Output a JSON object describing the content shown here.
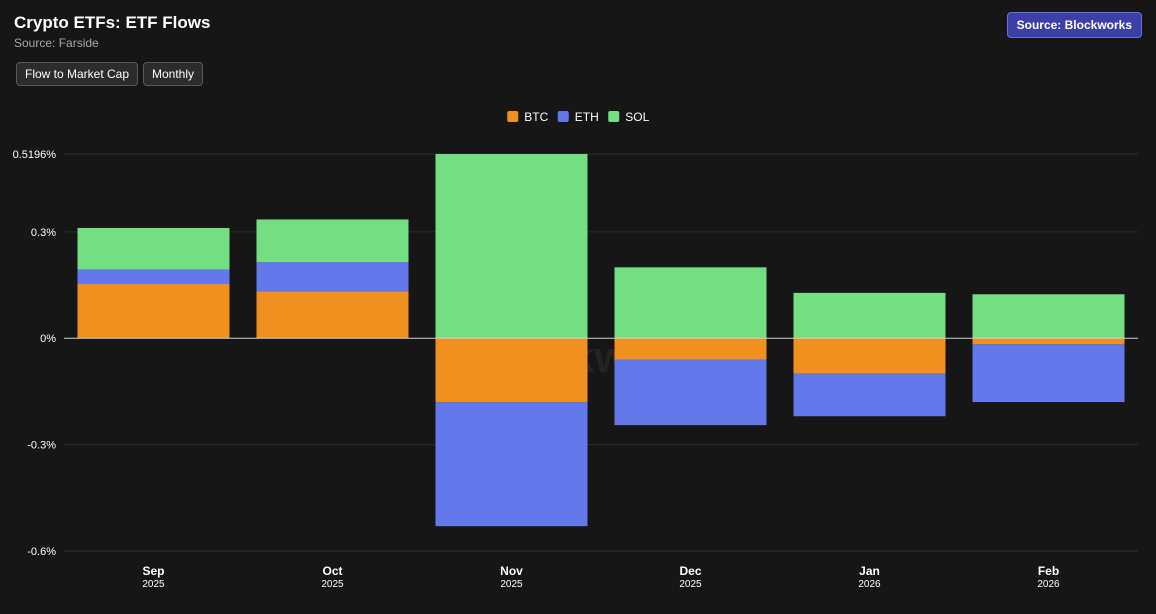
{
  "header": {
    "title": "Crypto ETFs: ETF Flows",
    "subtitle": "Source: Farside",
    "source_button": "Source: Blockworks"
  },
  "controls": {
    "metric_label": "Flow to Market Cap",
    "period_label": "Monthly"
  },
  "watermark": "Blockworks",
  "colors": {
    "BTC": "#f0901e",
    "ETH": "#6379eb",
    "SOL": "#74df82",
    "background": "#161616",
    "grid": "#2e2e2e",
    "zero_line": "#d0d0d0"
  },
  "chart_data": {
    "type": "bar",
    "stacked": true,
    "title": "Crypto ETFs: ETF Flows",
    "xlabel": "",
    "ylabel": "",
    "ylim": [
      -0.6,
      0.5196
    ],
    "y_ticks": [
      0.5196,
      0.3,
      0,
      -0.3,
      -0.6
    ],
    "y_tick_labels": [
      "0.5196%",
      "0.3%",
      "0%",
      "-0.3%",
      "-0.6%"
    ],
    "categories": [
      "Sep",
      "Oct",
      "Nov",
      "Dec",
      "Jan",
      "Feb"
    ],
    "category_years": [
      "2025",
      "2025",
      "2025",
      "2025",
      "2026",
      "2026"
    ],
    "legend_position": "top-center",
    "grid": true,
    "series": [
      {
        "name": "BTC",
        "values": [
          0.153,
          0.132,
          -0.18,
          -0.06,
          -0.1,
          -0.017
        ]
      },
      {
        "name": "ETH",
        "values": [
          0.041,
          0.083,
          -0.35,
          -0.185,
          -0.12,
          -0.163
        ]
      },
      {
        "name": "SOL",
        "values": [
          0.117,
          0.12,
          0.5196,
          0.2,
          0.128,
          0.124
        ]
      }
    ]
  }
}
